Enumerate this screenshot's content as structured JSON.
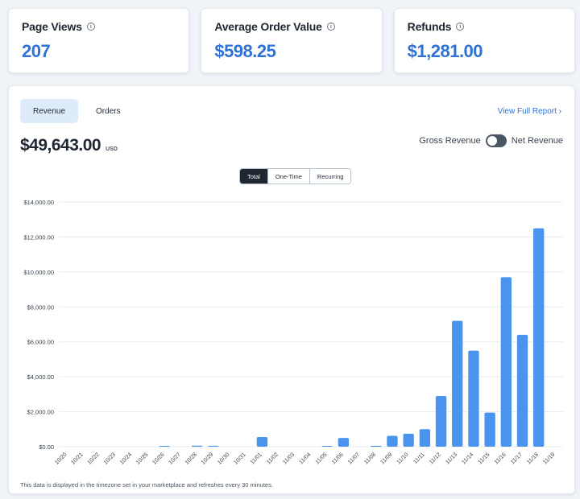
{
  "stats": [
    {
      "label": "Page Views",
      "value": "207"
    },
    {
      "label": "Average Order Value",
      "value": "$598.25"
    },
    {
      "label": "Refunds",
      "value": "$1,281.00"
    }
  ],
  "tabs": [
    {
      "label": "Revenue",
      "active": true
    },
    {
      "label": "Orders",
      "active": false
    }
  ],
  "view_full_report": "View Full Report ›",
  "total": {
    "value": "$49,643.00",
    "currency": "USD"
  },
  "revenue_toggle": {
    "left_label": "Gross Revenue",
    "right_label": "Net Revenue",
    "state": "gross"
  },
  "segments": [
    {
      "label": "Total",
      "active": true
    },
    {
      "label": "One-Time",
      "active": false
    },
    {
      "label": "Recurring",
      "active": false
    }
  ],
  "footnote": "This data is displayed in the timezone set in your marketplace and refreshes every 30 minutes.",
  "colors": {
    "accent": "#2f72d6",
    "bar": "#4a94ee",
    "active_tab_bg": "#deebfb"
  },
  "chart_data": {
    "type": "bar",
    "categories": [
      "10/20",
      "10/21",
      "10/22",
      "10/23",
      "10/24",
      "10/25",
      "10/26",
      "10/27",
      "10/28",
      "10/29",
      "10/30",
      "10/31",
      "11/01",
      "11/02",
      "11/03",
      "11/04",
      "11/05",
      "11/06",
      "11/07",
      "11/08",
      "11/09",
      "11/10",
      "11/11",
      "11/12",
      "11/13",
      "11/14",
      "11/15",
      "11/16",
      "11/17",
      "11/18",
      "11/19"
    ],
    "values": [
      0,
      0,
      0,
      0,
      0,
      0,
      40,
      0,
      60,
      50,
      0,
      0,
      550,
      0,
      0,
      0,
      40,
      500,
      0,
      50,
      620,
      740,
      1000,
      2900,
      7200,
      5500,
      1950,
      9700,
      6400,
      12500,
      0
    ],
    "ylim": [
      0,
      14000
    ],
    "yticks": [
      "$0.00",
      "$2,000.00",
      "$4,000.00",
      "$6,000.00",
      "$8,000.00",
      "$10,000.00",
      "$12,000.00",
      "$14,000.00"
    ],
    "ytick_values": [
      0,
      2000,
      4000,
      6000,
      8000,
      10000,
      12000,
      14000
    ],
    "grid": true,
    "legend": "none"
  }
}
